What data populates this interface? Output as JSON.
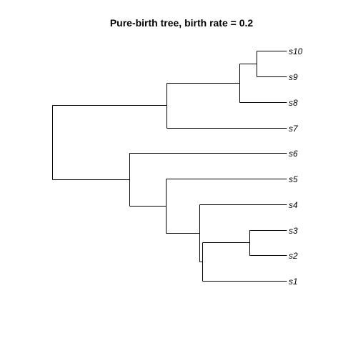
{
  "title": "Pure-birth tree, birth rate =  0.2",
  "colors": {
    "background": "#ffffff",
    "line": "#000000",
    "text": "#000000"
  },
  "tree": {
    "newick": "(((s10,s9),s8),s7),(s6,(s5,(s4,((s3,s2),s1))))",
    "tips": [
      "s10",
      "s9",
      "s8",
      "s7",
      "s6",
      "s5",
      "s4",
      "s3",
      "s2",
      "s1"
    ]
  }
}
